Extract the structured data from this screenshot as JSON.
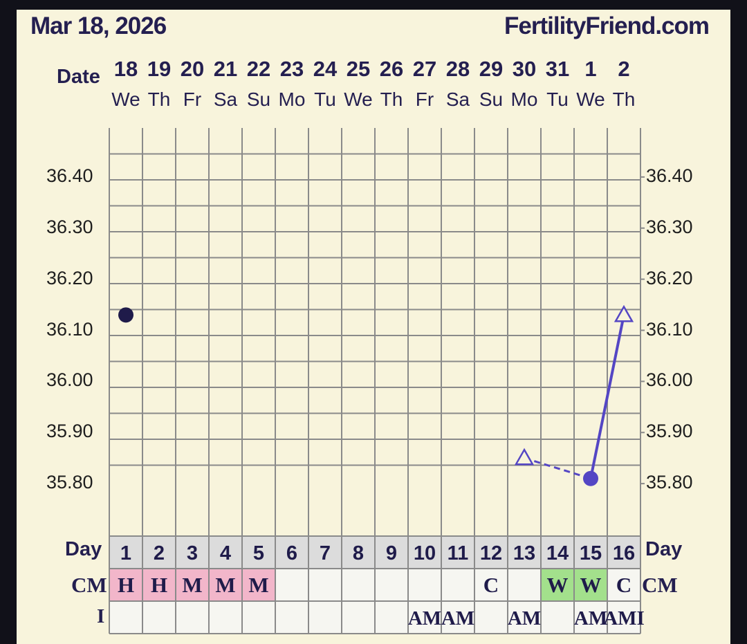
{
  "header": {
    "date": "Mar 18, 2026",
    "site": "FertilityFriend.com"
  },
  "labels": {
    "date": "Date",
    "day": "Day",
    "cm": "CM",
    "i": "I"
  },
  "colors": {
    "text": "#241f50",
    "grid": "#8a8a8a",
    "temp": "#5446c4",
    "h": "#f2b6ca",
    "m": "#f2b6ca",
    "w": "#a3e08c",
    "dayrow": "#dcdcdc"
  },
  "chart_data": {
    "type": "line",
    "dates": [
      "18",
      "19",
      "20",
      "21",
      "22",
      "23",
      "24",
      "25",
      "26",
      "27",
      "28",
      "29",
      "30",
      "31",
      "1",
      "2"
    ],
    "weekdays": [
      "We",
      "Th",
      "Fr",
      "Sa",
      "Su",
      "Mo",
      "Tu",
      "We",
      "Th",
      "Fr",
      "Sa",
      "Su",
      "Mo",
      "Tu",
      "We",
      "Th"
    ],
    "days": [
      "1",
      "2",
      "3",
      "4",
      "5",
      "6",
      "7",
      "8",
      "9",
      "10",
      "11",
      "12",
      "13",
      "14",
      "15",
      "16"
    ],
    "ylim": [
      35.7,
      36.5
    ],
    "yticks": [
      "36.40",
      "36.30",
      "36.20",
      "36.10",
      "36.00",
      "35.90",
      "35.80"
    ],
    "temps": [
      {
        "day": 1,
        "value": 36.13,
        "marker": "circle",
        "color": "#1f1b4a"
      },
      {
        "day": 13,
        "value": 35.85,
        "marker": "triangle",
        "color": "#5446c4"
      },
      {
        "day": 15,
        "value": 35.81,
        "marker": "circle",
        "color": "#5446c4"
      },
      {
        "day": 16,
        "value": 36.13,
        "marker": "triangle",
        "color": "#5446c4"
      }
    ],
    "lines": [
      {
        "from": 13,
        "to": 15,
        "style": "dashed"
      },
      {
        "from": 15,
        "to": 16,
        "style": "solid"
      }
    ],
    "cm": [
      "H",
      "H",
      "M",
      "M",
      "M",
      "",
      "",
      "",
      "",
      "",
      "",
      "C",
      "",
      "W",
      "W",
      "C"
    ],
    "intercourse": [
      "",
      "",
      "",
      "",
      "",
      "",
      "",
      "",
      "",
      "AM",
      "AM",
      "",
      "AM",
      "",
      "AM",
      "AMI"
    ]
  }
}
